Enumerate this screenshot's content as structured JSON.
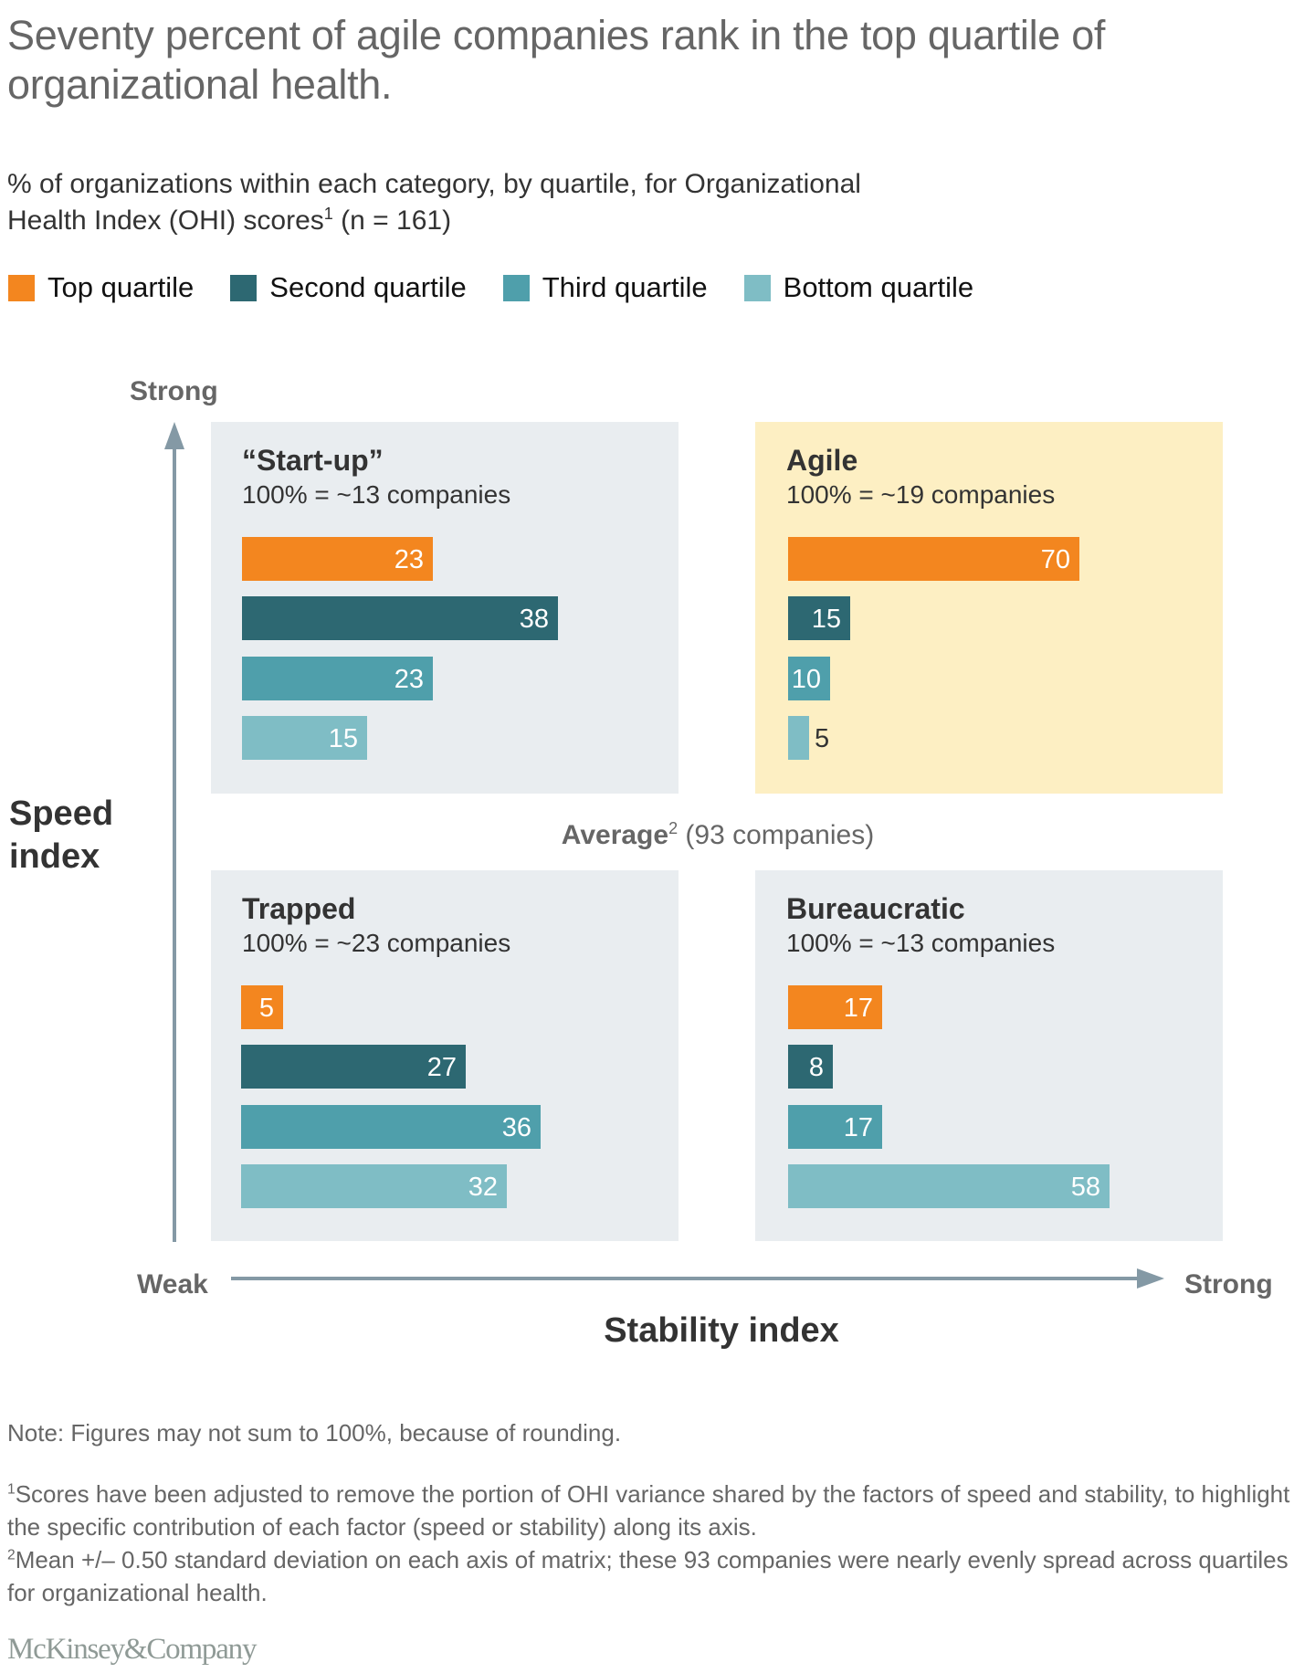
{
  "header": {
    "title_line1": "Seventy percent of agile companies rank in the top quartile of",
    "title_line2": "organizational health.",
    "subtitle_line1": "% of organizations within each category, by quartile, for Organizational",
    "subtitle_line2_a": "Health Index (OHI) scores",
    "subtitle_line2_sup": "1",
    "subtitle_line2_b": " (n = 161)"
  },
  "chart_data": {
    "type": "bar",
    "orientation": "horizontal",
    "title": "Seventy percent of agile companies rank in the top quartile of organizational health.",
    "subtitle": "% of organizations within each category, by quartile, for Organizational Health Index (OHI) scores (n = 161)",
    "categories": [
      "Top quartile",
      "Second quartile",
      "Third quartile",
      "Bottom quartile"
    ],
    "colors": {
      "Top quartile": "#f3861f",
      "Second quartile": "#2d6872",
      "Third quartile": "#4f9fab",
      "Bottom quartile": "#7fbdc5"
    },
    "legend_position": "top-left",
    "xlabel": "Stability index",
    "ylabel": "Speed index",
    "x_axis_ends": [
      "Weak",
      "Strong"
    ],
    "y_axis_top": "Strong",
    "center_label_bold": "Average",
    "center_label_sup": "2",
    "center_label_rest": " (93 companies)",
    "panels": [
      {
        "name": "“Start-up”",
        "base": "100% = ~13 companies",
        "quadrant": "top-left",
        "highlight": false,
        "values": [
          23,
          38,
          23,
          15
        ]
      },
      {
        "name": "Agile",
        "base": "100% = ~19 companies",
        "quadrant": "top-right",
        "highlight": true,
        "values": [
          70,
          15,
          10,
          5
        ]
      },
      {
        "name": "Trapped",
        "base": "100% = ~23 companies",
        "quadrant": "bottom-left",
        "highlight": false,
        "values": [
          5,
          27,
          36,
          32
        ]
      },
      {
        "name": "Bureaucratic",
        "base": "100% = ~13 companies",
        "quadrant": "bottom-right",
        "highlight": false,
        "values": [
          17,
          8,
          17,
          58
        ]
      }
    ],
    "panel_background": "#e9edf0",
    "highlight_background": "#fdefc3"
  },
  "footer": {
    "note": "Note: Figures may not sum to 100%, because of rounding.",
    "footnote1_sup": "1",
    "footnote1": "Scores have been adjusted to remove the portion of OHI variance shared by the factors of speed and stability, to highlight the specific contribution of each factor (speed or stability) along its axis.",
    "footnote2_sup": "2",
    "footnote2": "Mean +/– 0.50 standard deviation on each axis of matrix; these 93 companies were nearly evenly spread across quartiles for organizational health.",
    "logo": "McKinsey&Company"
  }
}
